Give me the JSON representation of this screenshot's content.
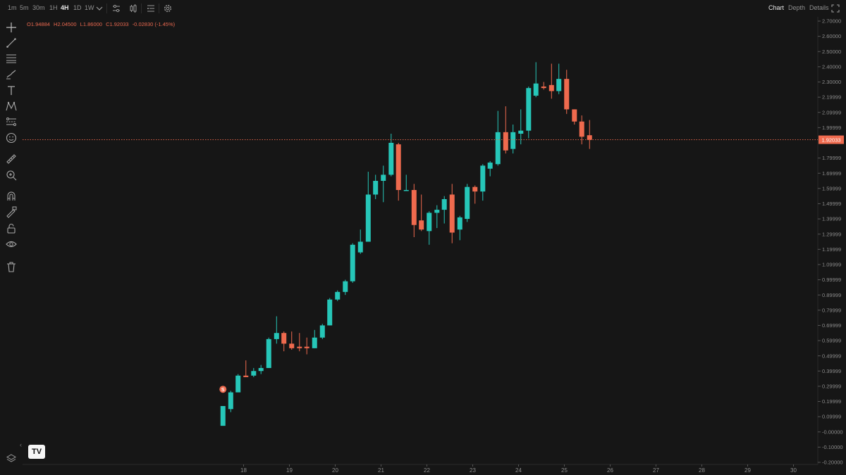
{
  "topbar": {
    "timeframes": [
      "1m",
      "5m",
      "30m",
      "1H",
      "4H",
      "1D",
      "1W"
    ],
    "active_timeframe": "4H",
    "icons": [
      "chevron-down-icon",
      "indicators-icon",
      "candle-type-icon",
      "list-settings-icon",
      "gear-icon"
    ],
    "views": [
      "Chart",
      "Depth",
      "Details"
    ],
    "active_view": "Chart"
  },
  "toolbar": {
    "tools": [
      "crosshair-icon",
      "trendline-icon",
      "fib-lines-icon",
      "brush-icon",
      "text-icon",
      "pattern-icon",
      "projection-icon",
      "emoji-icon",
      "ruler-icon",
      "zoom-in-icon",
      "magnet-icon",
      "lock-drawing-icon",
      "lock-icon",
      "eye-icon",
      "trash-icon"
    ]
  },
  "ohlc": {
    "open": "O1.94884",
    "high": "H2.04500",
    "low": "L1.86000",
    "close": "C1.92033",
    "change": "-0.02830 (-1.45%)"
  },
  "colors": {
    "up": "#26c6b8",
    "down": "#ef6a4e",
    "background": "#161616",
    "price_line": "#ef6a4e"
  },
  "logo_text": "TV",
  "collapse_glyph": "‹",
  "chart_data": {
    "type": "candlestick",
    "y_ticks": [
      "2.70000",
      "2.60000",
      "2.50000",
      "2.40000",
      "2.30000",
      "2.19999",
      "2.09999",
      "1.99999",
      "1.79999",
      "1.69999",
      "1.59999",
      "1.49999",
      "1.39999",
      "1.29999",
      "1.19999",
      "1.09999",
      "0.99999",
      "0.89999",
      "0.79999",
      "0.69999",
      "0.59999",
      "0.49999",
      "0.39999",
      "0.29999",
      "0.19999",
      "0.09999",
      "-0.00000",
      "-0.10000",
      "-0.20000"
    ],
    "x_ticks": [
      "18",
      "19",
      "20",
      "21",
      "22",
      "23",
      "24",
      "25",
      "26",
      "27",
      "28",
      "29",
      "30"
    ],
    "ylim": [
      -0.2,
      2.7
    ],
    "last_price": "1.92033",
    "last_price_value": 1.92033,
    "marker_label": "S",
    "marker_day": 17.55,
    "marker_value": 0.28,
    "candles": [
      {
        "d": 17.55,
        "o": 0.04,
        "h": 0.17,
        "l": 0.04,
        "c": 0.17
      },
      {
        "d": 17.72,
        "o": 0.15,
        "h": 0.27,
        "l": 0.13,
        "c": 0.26
      },
      {
        "d": 17.88,
        "o": 0.26,
        "h": 0.38,
        "l": 0.26,
        "c": 0.37
      },
      {
        "d": 18.05,
        "o": 0.37,
        "h": 0.47,
        "l": 0.36,
        "c": 0.36
      },
      {
        "d": 18.22,
        "o": 0.37,
        "h": 0.42,
        "l": 0.36,
        "c": 0.4
      },
      {
        "d": 18.38,
        "o": 0.4,
        "h": 0.44,
        "l": 0.38,
        "c": 0.42
      },
      {
        "d": 18.55,
        "o": 0.42,
        "h": 0.62,
        "l": 0.42,
        "c": 0.61
      },
      {
        "d": 18.72,
        "o": 0.61,
        "h": 0.76,
        "l": 0.58,
        "c": 0.65
      },
      {
        "d": 18.88,
        "o": 0.65,
        "h": 0.66,
        "l": 0.53,
        "c": 0.58
      },
      {
        "d": 19.05,
        "o": 0.58,
        "h": 0.66,
        "l": 0.54,
        "c": 0.55
      },
      {
        "d": 19.22,
        "o": 0.56,
        "h": 0.65,
        "l": 0.53,
        "c": 0.55
      },
      {
        "d": 19.38,
        "o": 0.56,
        "h": 0.62,
        "l": 0.51,
        "c": 0.55
      },
      {
        "d": 19.55,
        "o": 0.55,
        "h": 0.67,
        "l": 0.55,
        "c": 0.62
      },
      {
        "d": 19.72,
        "o": 0.62,
        "h": 0.71,
        "l": 0.61,
        "c": 0.7
      },
      {
        "d": 19.88,
        "o": 0.7,
        "h": 0.88,
        "l": 0.7,
        "c": 0.87
      },
      {
        "d": 20.05,
        "o": 0.87,
        "h": 0.93,
        "l": 0.86,
        "c": 0.92
      },
      {
        "d": 20.22,
        "o": 0.92,
        "h": 1.0,
        "l": 0.9,
        "c": 0.99
      },
      {
        "d": 20.38,
        "o": 0.99,
        "h": 1.24,
        "l": 0.98,
        "c": 1.23
      },
      {
        "d": 20.55,
        "o": 1.18,
        "h": 1.33,
        "l": 1.17,
        "c": 1.25
      },
      {
        "d": 20.72,
        "o": 1.25,
        "h": 1.71,
        "l": 1.25,
        "c": 1.56
      },
      {
        "d": 20.88,
        "o": 1.56,
        "h": 1.69,
        "l": 1.53,
        "c": 1.65
      },
      {
        "d": 21.05,
        "o": 1.65,
        "h": 1.75,
        "l": 1.51,
        "c": 1.69
      },
      {
        "d": 21.22,
        "o": 1.69,
        "h": 1.96,
        "l": 1.68,
        "c": 1.9
      },
      {
        "d": 21.38,
        "o": 1.89,
        "h": 1.9,
        "l": 1.52,
        "c": 1.59
      },
      {
        "d": 21.55,
        "o": 1.59,
        "h": 1.69,
        "l": 1.59,
        "c": 1.59
      },
      {
        "d": 21.72,
        "o": 1.59,
        "h": 1.63,
        "l": 1.28,
        "c": 1.36
      },
      {
        "d": 21.88,
        "o": 1.39,
        "h": 1.56,
        "l": 1.32,
        "c": 1.33
      },
      {
        "d": 22.05,
        "o": 1.32,
        "h": 1.45,
        "l": 1.23,
        "c": 1.44
      },
      {
        "d": 22.22,
        "o": 1.44,
        "h": 1.49,
        "l": 1.34,
        "c": 1.46
      },
      {
        "d": 22.38,
        "o": 1.46,
        "h": 1.55,
        "l": 1.37,
        "c": 1.53
      },
      {
        "d": 22.55,
        "o": 1.56,
        "h": 1.63,
        "l": 1.24,
        "c": 1.31
      },
      {
        "d": 22.72,
        "o": 1.33,
        "h": 1.42,
        "l": 1.26,
        "c": 1.41
      },
      {
        "d": 22.88,
        "o": 1.4,
        "h": 1.63,
        "l": 1.38,
        "c": 1.61
      },
      {
        "d": 23.05,
        "o": 1.61,
        "h": 1.62,
        "l": 1.5,
        "c": 1.58
      },
      {
        "d": 23.22,
        "o": 1.58,
        "h": 1.76,
        "l": 1.52,
        "c": 1.75
      },
      {
        "d": 23.38,
        "o": 1.73,
        "h": 1.78,
        "l": 1.68,
        "c": 1.77
      },
      {
        "d": 23.55,
        "o": 1.76,
        "h": 2.11,
        "l": 1.75,
        "c": 1.97
      },
      {
        "d": 23.72,
        "o": 1.97,
        "h": 2.14,
        "l": 1.83,
        "c": 1.85
      },
      {
        "d": 23.88,
        "o": 1.86,
        "h": 2.02,
        "l": 1.83,
        "c": 1.97
      },
      {
        "d": 24.05,
        "o": 1.96,
        "h": 2.12,
        "l": 1.89,
        "c": 1.98
      },
      {
        "d": 24.22,
        "o": 1.98,
        "h": 2.27,
        "l": 1.93,
        "c": 2.26
      },
      {
        "d": 24.38,
        "o": 2.21,
        "h": 2.43,
        "l": 2.2,
        "c": 2.29
      },
      {
        "d": 24.55,
        "o": 2.27,
        "h": 2.3,
        "l": 2.25,
        "c": 2.26
      },
      {
        "d": 24.72,
        "o": 2.28,
        "h": 2.42,
        "l": 2.19,
        "c": 2.24
      },
      {
        "d": 24.88,
        "o": 2.24,
        "h": 2.42,
        "l": 2.22,
        "c": 2.32
      },
      {
        "d": 25.05,
        "o": 2.32,
        "h": 2.38,
        "l": 2.09,
        "c": 2.12
      },
      {
        "d": 25.22,
        "o": 2.12,
        "h": 2.12,
        "l": 2.02,
        "c": 2.04
      },
      {
        "d": 25.38,
        "o": 2.04,
        "h": 2.08,
        "l": 1.89,
        "c": 1.94
      },
      {
        "d": 25.55,
        "o": 1.95,
        "h": 2.05,
        "l": 1.86,
        "c": 1.92
      }
    ]
  }
}
